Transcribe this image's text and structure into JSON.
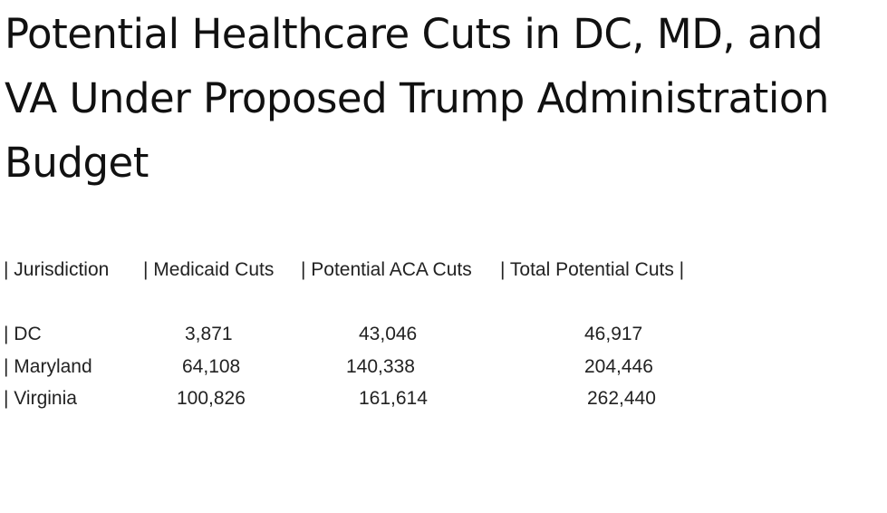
{
  "title": "Potential Healthcare Cuts in DC, MD, and VA Under Proposed Trump Administration Budget",
  "table": {
    "header": {
      "col1": "| Jurisdiction",
      "col2": "| Medicaid Cuts",
      "col3": "| Potential ACA Cuts",
      "col4": "| Total Potential Cuts |"
    },
    "rows": [
      {
        "jurisdiction": "| DC",
        "medicaid": "3,871",
        "aca": "43,046",
        "total": "46,917"
      },
      {
        "jurisdiction": "| Maryland",
        "medicaid": "64,108",
        "aca": "140,338",
        "total": "204,446"
      },
      {
        "jurisdiction": "| Virginia",
        "medicaid": "100,826",
        "aca": "161,614",
        "total": "262,440"
      }
    ]
  }
}
